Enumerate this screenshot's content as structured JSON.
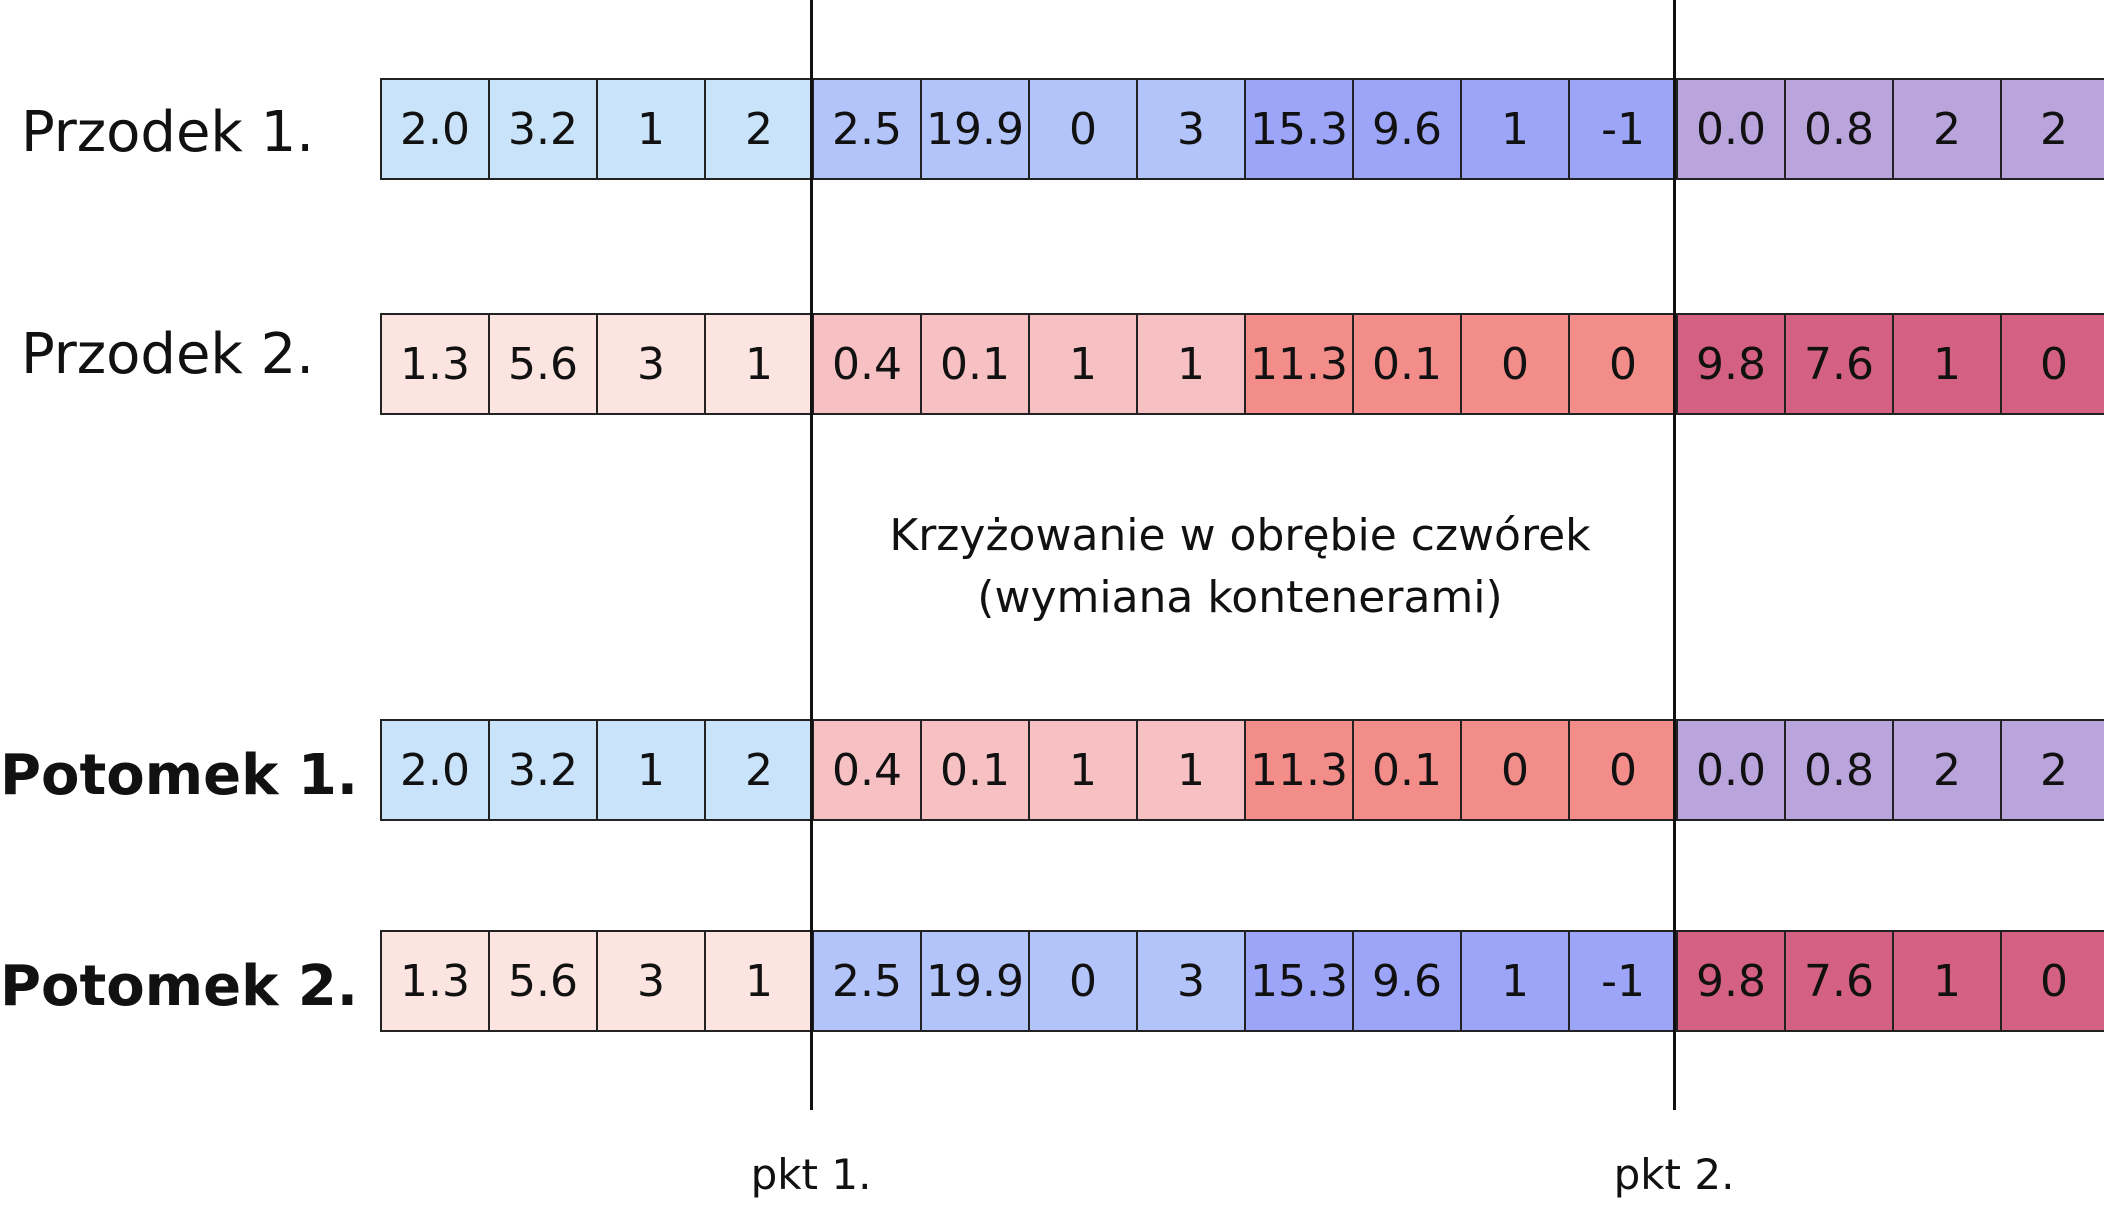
{
  "caption": {
    "line1": "Krzyżowanie w obrębie czwórek",
    "line2": "(wymiana kontenerami)"
  },
  "cut_points": [
    "pkt 1.",
    "pkt 2."
  ],
  "palette": {
    "p1_a": "#c8e3fa",
    "p1_b": "#b3c4fa",
    "p1_c": "#9ca5f8",
    "p1_d": "#b9a4dc",
    "p2_a": "#fce4e1",
    "p2_b": "#f7c0c2",
    "p2_c": "#f28d89",
    "p2_d": "#d46184"
  },
  "rows": [
    {
      "label": "Przodek 1.",
      "bold": false,
      "cells": [
        {
          "v": "2.0",
          "c": "p1_a"
        },
        {
          "v": "3.2",
          "c": "p1_a"
        },
        {
          "v": "1",
          "c": "p1_a"
        },
        {
          "v": "2",
          "c": "p1_a"
        },
        {
          "v": "2.5",
          "c": "p1_b"
        },
        {
          "v": "19.9",
          "c": "p1_b"
        },
        {
          "v": "0",
          "c": "p1_b"
        },
        {
          "v": "3",
          "c": "p1_b"
        },
        {
          "v": "15.3",
          "c": "p1_c"
        },
        {
          "v": "9.6",
          "c": "p1_c"
        },
        {
          "v": "1",
          "c": "p1_c"
        },
        {
          "v": "-1",
          "c": "p1_c"
        },
        {
          "v": "0.0",
          "c": "p1_d"
        },
        {
          "v": "0.8",
          "c": "p1_d"
        },
        {
          "v": "2",
          "c": "p1_d"
        },
        {
          "v": "2",
          "c": "p1_d"
        }
      ]
    },
    {
      "label": "Przodek 2.",
      "bold": false,
      "cells": [
        {
          "v": "1.3",
          "c": "p2_a"
        },
        {
          "v": "5.6",
          "c": "p2_a"
        },
        {
          "v": "3",
          "c": "p2_a"
        },
        {
          "v": "1",
          "c": "p2_a"
        },
        {
          "v": "0.4",
          "c": "p2_b"
        },
        {
          "v": "0.1",
          "c": "p2_b"
        },
        {
          "v": "1",
          "c": "p2_b"
        },
        {
          "v": "1",
          "c": "p2_b"
        },
        {
          "v": "11.3",
          "c": "p2_c"
        },
        {
          "v": "0.1",
          "c": "p2_c"
        },
        {
          "v": "0",
          "c": "p2_c"
        },
        {
          "v": "0",
          "c": "p2_c"
        },
        {
          "v": "9.8",
          "c": "p2_d"
        },
        {
          "v": "7.6",
          "c": "p2_d"
        },
        {
          "v": "1",
          "c": "p2_d"
        },
        {
          "v": "0",
          "c": "p2_d"
        }
      ]
    },
    {
      "label": "Potomek 1.",
      "bold": true,
      "cells": [
        {
          "v": "2.0",
          "c": "p1_a"
        },
        {
          "v": "3.2",
          "c": "p1_a"
        },
        {
          "v": "1",
          "c": "p1_a"
        },
        {
          "v": "2",
          "c": "p1_a"
        },
        {
          "v": "0.4",
          "c": "p2_b"
        },
        {
          "v": "0.1",
          "c": "p2_b"
        },
        {
          "v": "1",
          "c": "p2_b"
        },
        {
          "v": "1",
          "c": "p2_b"
        },
        {
          "v": "11.3",
          "c": "p2_c"
        },
        {
          "v": "0.1",
          "c": "p2_c"
        },
        {
          "v": "0",
          "c": "p2_c"
        },
        {
          "v": "0",
          "c": "p2_c"
        },
        {
          "v": "0.0",
          "c": "p1_d"
        },
        {
          "v": "0.8",
          "c": "p1_d"
        },
        {
          "v": "2",
          "c": "p1_d"
        },
        {
          "v": "2",
          "c": "p1_d"
        }
      ]
    },
    {
      "label": "Potomek 2.",
      "bold": true,
      "cells": [
        {
          "v": "1.3",
          "c": "p2_a"
        },
        {
          "v": "5.6",
          "c": "p2_a"
        },
        {
          "v": "3",
          "c": "p2_a"
        },
        {
          "v": "1",
          "c": "p2_a"
        },
        {
          "v": "2.5",
          "c": "p1_b"
        },
        {
          "v": "19.9",
          "c": "p1_b"
        },
        {
          "v": "0",
          "c": "p1_b"
        },
        {
          "v": "3",
          "c": "p1_b"
        },
        {
          "v": "15.3",
          "c": "p1_c"
        },
        {
          "v": "9.6",
          "c": "p1_c"
        },
        {
          "v": "1",
          "c": "p1_c"
        },
        {
          "v": "-1",
          "c": "p1_c"
        },
        {
          "v": "9.8",
          "c": "p2_d"
        },
        {
          "v": "7.6",
          "c": "p2_d"
        },
        {
          "v": "1",
          "c": "p2_d"
        },
        {
          "v": "0",
          "c": "p2_d"
        }
      ]
    }
  ]
}
